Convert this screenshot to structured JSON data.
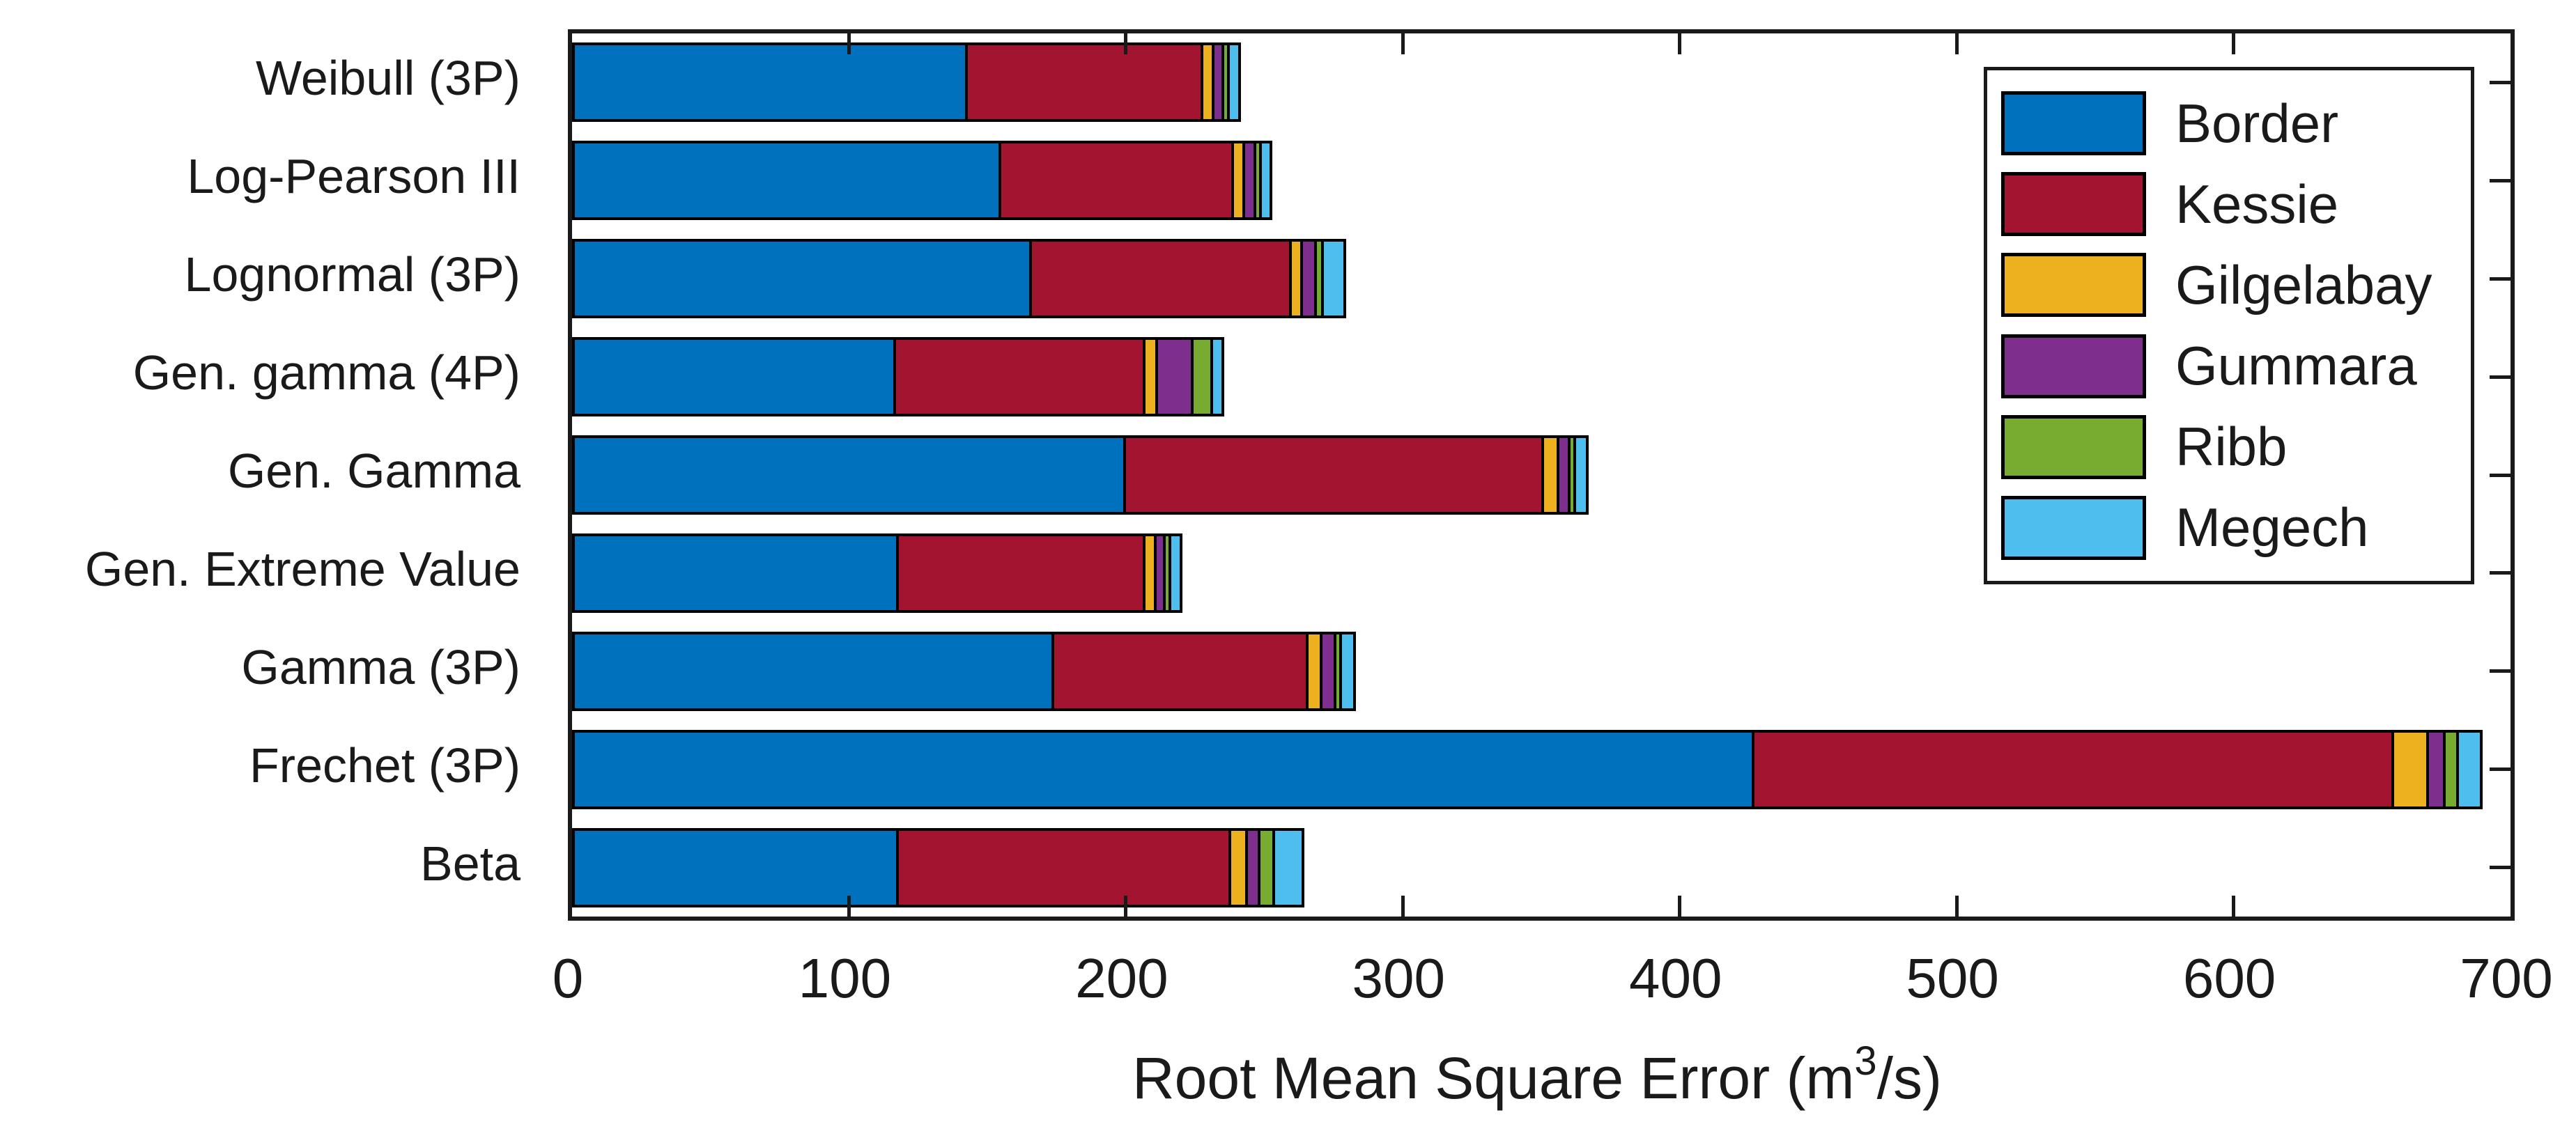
{
  "figure": {
    "background": "#ffffff",
    "axis_color": "#1a1a1a",
    "bar_edge_color": "#000000"
  },
  "chart_data": {
    "type": "bar",
    "orientation": "horizontal",
    "stacked": true,
    "grid": false,
    "legend_position": "upper-right",
    "xlabel_prefix": "Root Mean Square Error (m",
    "xlabel_sup": "3",
    "xlabel_suffix": "/s)",
    "ylabel": "",
    "xlim": [
      0,
      700
    ],
    "xticks": [
      0,
      100,
      200,
      300,
      400,
      500,
      600,
      700
    ],
    "categories": [
      "Weibull (3P)",
      "Log-Pearson III",
      "Lognormal (3P)",
      "Gen. gamma (4P)",
      "Gen. Gamma",
      "Gen. Extreme Value",
      "Gamma (3P)",
      "Frechet (3P)",
      "Beta"
    ],
    "series": [
      {
        "name": "Border",
        "color": "#0072BD",
        "values": [
          143,
          155,
          166,
          117,
          200,
          118,
          174,
          427,
          118
        ]
      },
      {
        "name": "Kessie",
        "color": "#A2142F",
        "values": [
          85,
          84,
          94,
          90,
          151,
          89,
          92,
          231,
          120
        ]
      },
      {
        "name": "Gilgelabay",
        "color": "#EDB120",
        "values": [
          4,
          4,
          4,
          4.5,
          5.5,
          4,
          5,
          12.5,
          6
        ]
      },
      {
        "name": "Gummara",
        "color": "#7E2F8E",
        "values": [
          3.5,
          4,
          5,
          13,
          4,
          3.5,
          5,
          6,
          4.5
        ]
      },
      {
        "name": "Ribb",
        "color": "#77AC30",
        "values": [
          2,
          2,
          2.5,
          7,
          2,
          2,
          2,
          5,
          5.5
        ]
      },
      {
        "name": "Megech",
        "color": "#4DBEEE",
        "values": [
          4,
          4,
          8,
          4,
          4.5,
          4,
          5,
          8.5,
          10.5
        ]
      }
    ]
  }
}
